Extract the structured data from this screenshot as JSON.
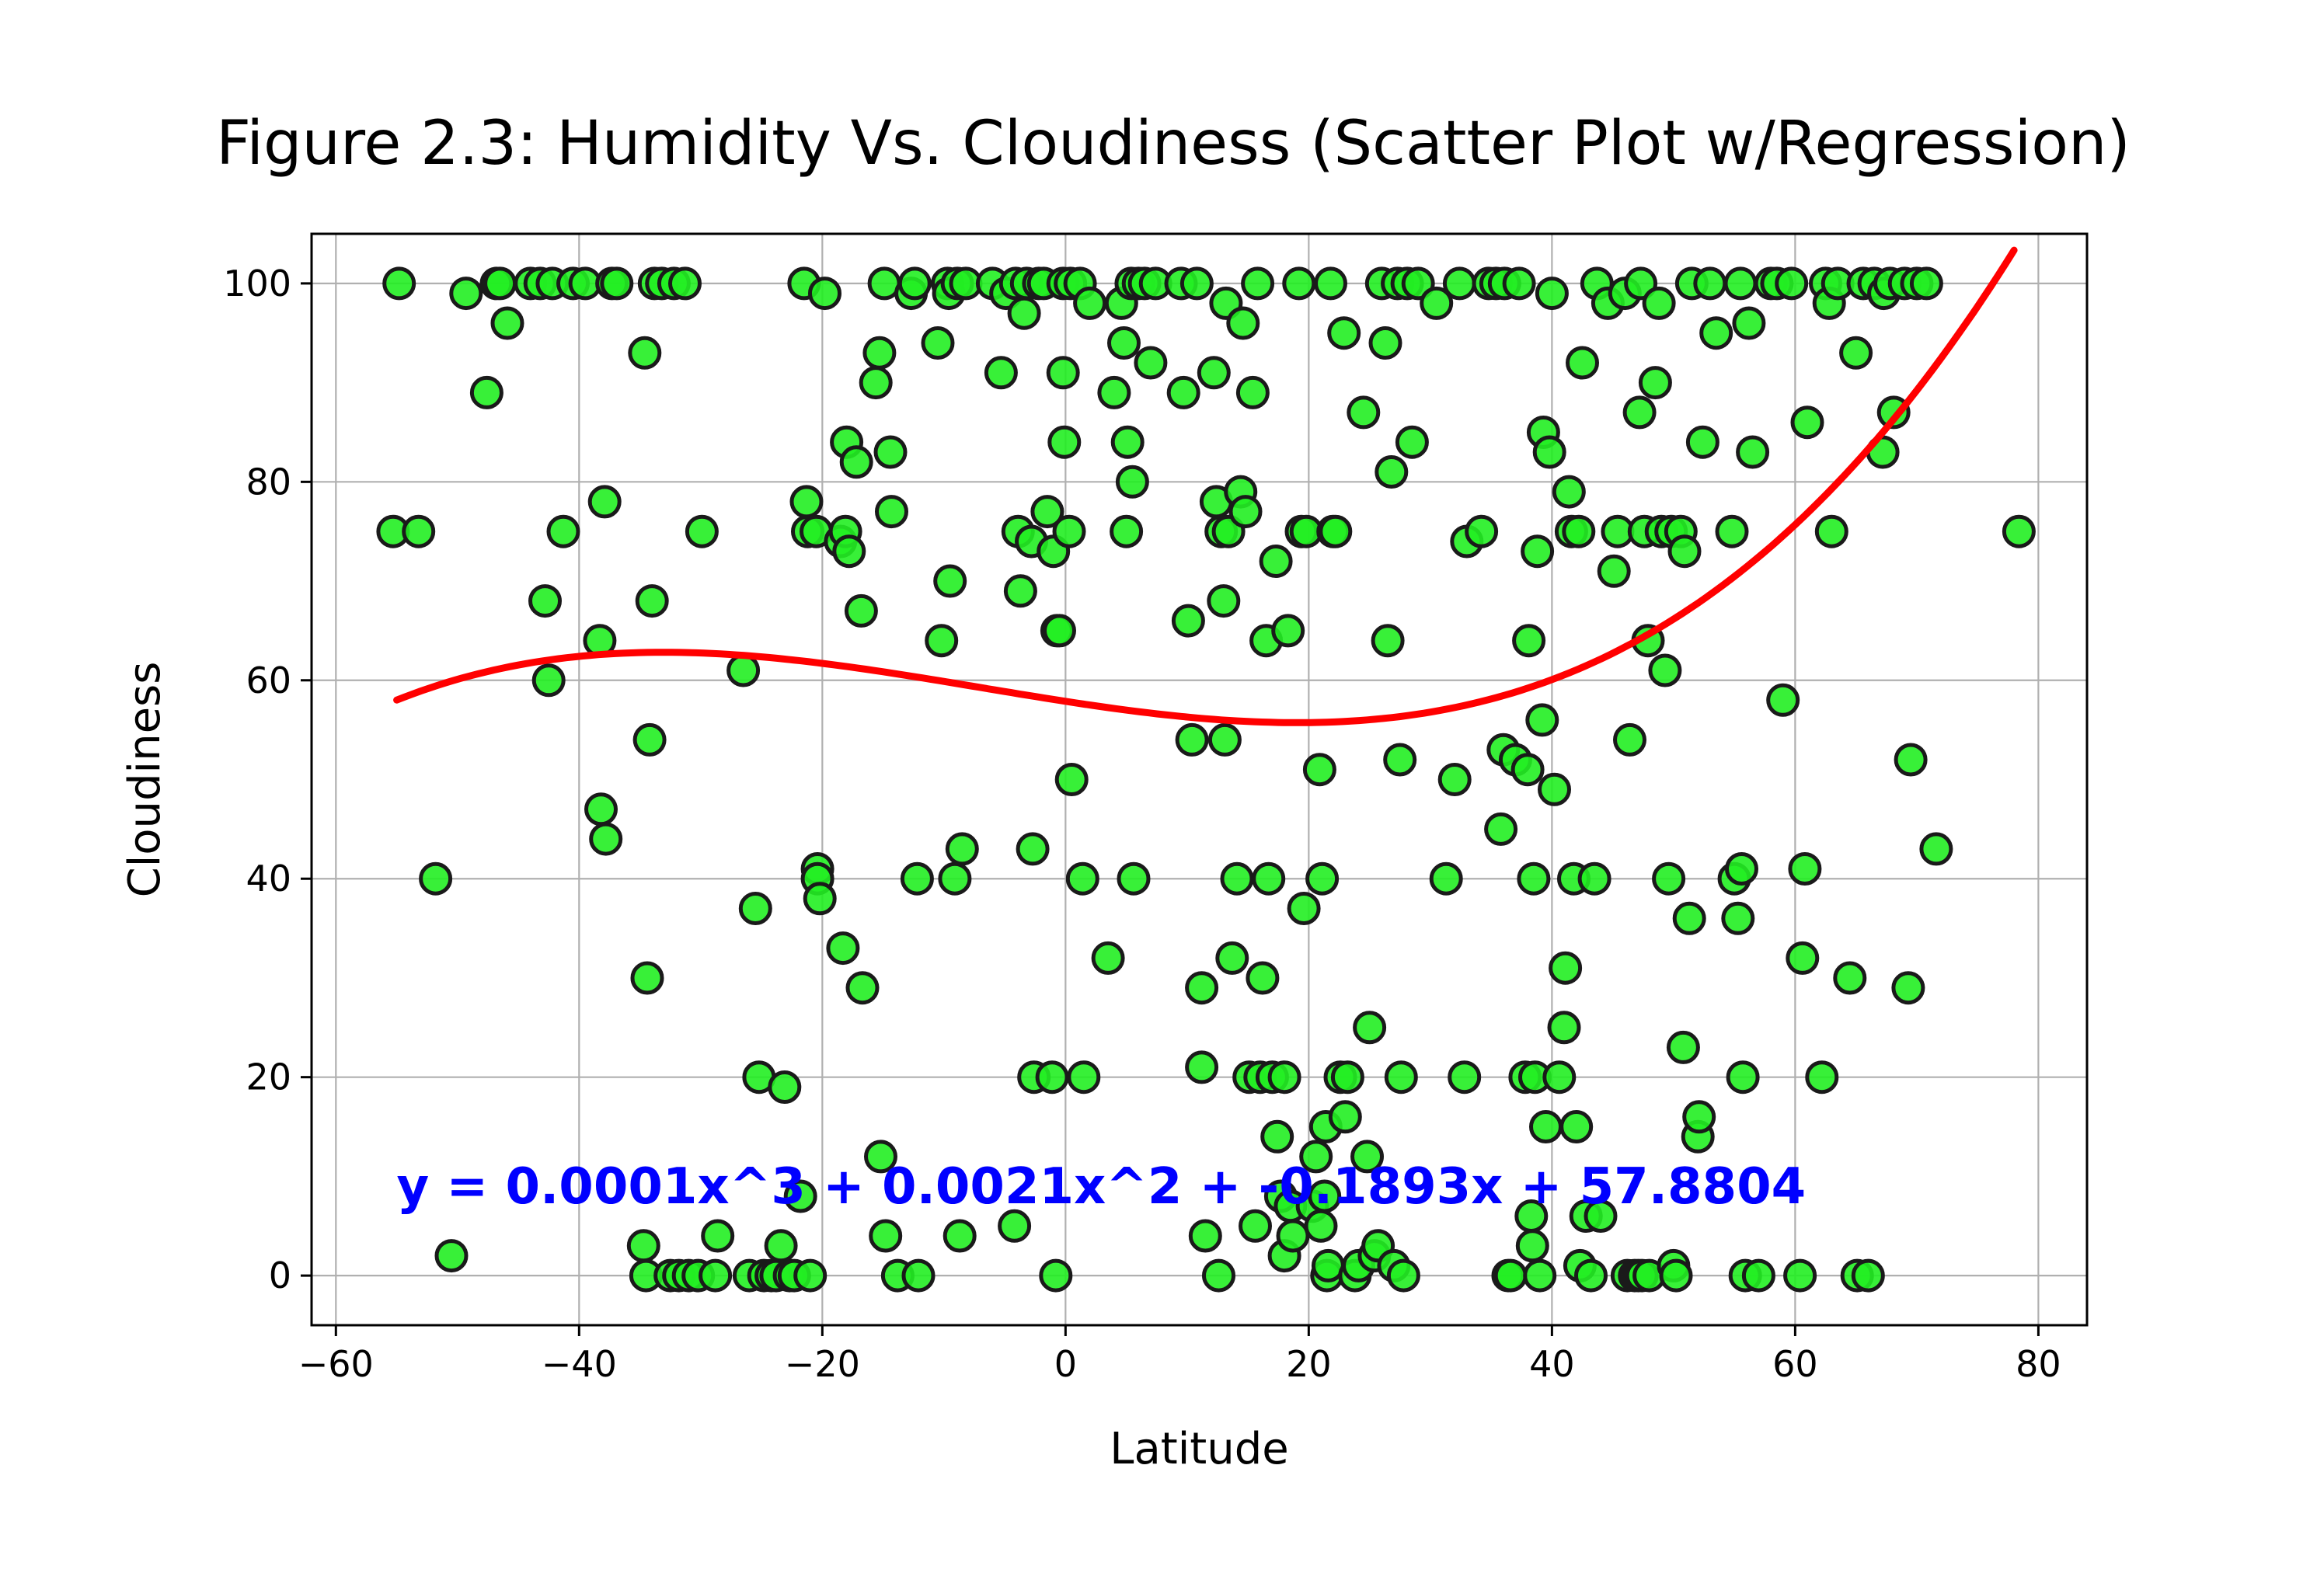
{
  "chart_data": {
    "type": "scatter",
    "title": "Figure 2.3: Humidity Vs. Cloudiness (Scatter Plot w/Regression)",
    "xlabel": "Latitude",
    "ylabel": "Cloudiness",
    "xlim": [
      -62,
      84
    ],
    "ylim": [
      -5,
      105
    ],
    "xticks": [
      -60,
      -40,
      -20,
      0,
      20,
      40,
      60,
      80
    ],
    "yticks": [
      0,
      20,
      40,
      60,
      80,
      100
    ],
    "xtick_labels": [
      "−60",
      "−40",
      "−20",
      "0",
      "20",
      "40",
      "60",
      "80"
    ],
    "ytick_labels": [
      "0",
      "20",
      "40",
      "60",
      "80",
      "100"
    ],
    "grid": true,
    "colors": {
      "marker_fill": "#22ee22",
      "marker_edge": "#1a1a1a",
      "regression": "#ff0000",
      "annotation": "#0000ff",
      "grid": "#b0b0b0"
    },
    "regression": {
      "coefficients": [
        0.0001,
        0.0021,
        -0.1893,
        57.8804
      ],
      "x_range": [
        -55,
        78
      ],
      "equation_label": "y = 0.0001x^3 + 0.0021x^2 + -0.1893x + 57.8804",
      "label_anchor": [
        -55,
        9
      ]
    },
    "points": [
      [
        -54.8,
        100
      ],
      [
        -55.3,
        75
      ],
      [
        -53.2,
        75
      ],
      [
        -51.8,
        40
      ],
      [
        -50.5,
        2
      ],
      [
        -49.3,
        99
      ],
      [
        -47.6,
        89
      ],
      [
        -46.8,
        100
      ],
      [
        -45.9,
        96
      ],
      [
        -46.5,
        100
      ],
      [
        -44,
        100
      ],
      [
        -43.2,
        100
      ],
      [
        -42.8,
        68
      ],
      [
        -42.5,
        60
      ],
      [
        -42.2,
        100
      ],
      [
        -41.3,
        75
      ],
      [
        -40.5,
        100
      ],
      [
        -39.5,
        100
      ],
      [
        -38.3,
        64
      ],
      [
        -38.2,
        47
      ],
      [
        -37.9,
        78
      ],
      [
        -37.8,
        44
      ],
      [
        -37.3,
        100
      ],
      [
        -36.9,
        100
      ],
      [
        -34.6,
        93
      ],
      [
        -34.7,
        3
      ],
      [
        -34.5,
        0
      ],
      [
        -34.4,
        30
      ],
      [
        -34.2,
        54
      ],
      [
        -34,
        68
      ],
      [
        -33.8,
        100
      ],
      [
        -33.2,
        100
      ],
      [
        -32.5,
        0
      ],
      [
        -32.2,
        100
      ],
      [
        -31.8,
        0
      ],
      [
        -31.3,
        100
      ],
      [
        -31,
        0
      ],
      [
        -30.2,
        0
      ],
      [
        -29.9,
        75
      ],
      [
        -28.8,
        0
      ],
      [
        -28.6,
        4
      ],
      [
        -26.5,
        61
      ],
      [
        -26,
        0
      ],
      [
        -25.5,
        37
      ],
      [
        -25.2,
        20
      ],
      [
        -24.8,
        0
      ],
      [
        -24.2,
        0
      ],
      [
        -23.8,
        0
      ],
      [
        -23.4,
        3
      ],
      [
        -23.1,
        19
      ],
      [
        -22.7,
        0
      ],
      [
        -22.3,
        0
      ],
      [
        -21.8,
        8
      ],
      [
        -21.5,
        100
      ],
      [
        -21.3,
        78
      ],
      [
        -21.2,
        75
      ],
      [
        -21,
        0
      ],
      [
        -20.5,
        75
      ],
      [
        -20.4,
        41
      ],
      [
        -20.4,
        40
      ],
      [
        -20.2,
        38
      ],
      [
        -19.8,
        99
      ],
      [
        -18.5,
        74
      ],
      [
        -18.3,
        33
      ],
      [
        -18.1,
        75
      ],
      [
        -18,
        84
      ],
      [
        -17.8,
        73
      ],
      [
        -17.2,
        82
      ],
      [
        -16.8,
        67
      ],
      [
        -16.7,
        29
      ],
      [
        -15.6,
        90
      ],
      [
        -15.3,
        93
      ],
      [
        -15.2,
        12
      ],
      [
        -14.9,
        100
      ],
      [
        -14.8,
        4
      ],
      [
        -14.4,
        83
      ],
      [
        -14.3,
        77
      ],
      [
        -13.8,
        0
      ],
      [
        -12.7,
        99
      ],
      [
        -12.4,
        100
      ],
      [
        -12.2,
        40
      ],
      [
        -12.1,
        0
      ],
      [
        -10.5,
        94
      ],
      [
        -10.2,
        64
      ],
      [
        -9.7,
        100
      ],
      [
        -9.6,
        99
      ],
      [
        -9.5,
        70
      ],
      [
        -9.1,
        40
      ],
      [
        -8.9,
        100
      ],
      [
        -8.7,
        4
      ],
      [
        -8.5,
        43
      ],
      [
        -8.2,
        100
      ],
      [
        -6,
        100
      ],
      [
        -5.3,
        91
      ],
      [
        -4.9,
        99
      ],
      [
        -4.2,
        5
      ],
      [
        -4.1,
        100
      ],
      [
        -3.9,
        75
      ],
      [
        -3.7,
        69
      ],
      [
        -3.4,
        97
      ],
      [
        -3.2,
        100
      ],
      [
        -2.8,
        74
      ],
      [
        -2.7,
        43
      ],
      [
        -2.6,
        20
      ],
      [
        -2.2,
        100
      ],
      [
        -1.8,
        100
      ],
      [
        -1.5,
        77
      ],
      [
        -1.1,
        20
      ],
      [
        -1,
        73
      ],
      [
        -0.8,
        0
      ],
      [
        -0.7,
        65
      ],
      [
        -0.5,
        65
      ],
      [
        -0.2,
        100
      ],
      [
        0.3,
        75
      ],
      [
        -0.2,
        91
      ],
      [
        -0.1,
        84
      ],
      [
        0.4,
        100
      ],
      [
        0.5,
        50
      ],
      [
        1.2,
        100
      ],
      [
        1.4,
        40
      ],
      [
        1.5,
        20
      ],
      [
        2,
        98
      ],
      [
        3.5,
        32
      ],
      [
        4,
        89
      ],
      [
        4.6,
        98
      ],
      [
        4.8,
        94
      ],
      [
        5,
        75
      ],
      [
        5.1,
        84
      ],
      [
        5.4,
        100
      ],
      [
        5.5,
        80
      ],
      [
        5.6,
        40
      ],
      [
        6,
        100
      ],
      [
        6.5,
        100
      ],
      [
        7,
        92
      ],
      [
        7.4,
        100
      ],
      [
        9.5,
        100
      ],
      [
        9.7,
        89
      ],
      [
        10.1,
        66
      ],
      [
        10.4,
        54
      ],
      [
        10.8,
        100
      ],
      [
        11.2,
        21
      ],
      [
        11.2,
        29
      ],
      [
        11.5,
        4
      ],
      [
        12.2,
        91
      ],
      [
        12.4,
        78
      ],
      [
        12.6,
        0
      ],
      [
        12.8,
        75
      ],
      [
        13,
        68
      ],
      [
        13.1,
        54
      ],
      [
        13.2,
        98
      ],
      [
        13.4,
        75
      ],
      [
        13.7,
        32
      ],
      [
        14.1,
        40
      ],
      [
        14.4,
        79
      ],
      [
        14.6,
        96
      ],
      [
        14.8,
        77
      ],
      [
        15.1,
        20
      ],
      [
        15.4,
        89
      ],
      [
        15.6,
        5
      ],
      [
        15.8,
        100
      ],
      [
        16,
        20
      ],
      [
        16.2,
        30
      ],
      [
        16.5,
        64
      ],
      [
        16.7,
        40
      ],
      [
        17,
        20
      ],
      [
        17.3,
        72
      ],
      [
        17.4,
        14
      ],
      [
        17.7,
        8
      ],
      [
        18,
        2
      ],
      [
        18,
        20
      ],
      [
        18.3,
        65
      ],
      [
        18.5,
        7
      ],
      [
        18.7,
        4
      ],
      [
        19.2,
        100
      ],
      [
        19.4,
        75
      ],
      [
        19.6,
        37
      ],
      [
        19.8,
        75
      ],
      [
        20.3,
        7
      ],
      [
        20.6,
        12
      ],
      [
        20.9,
        51
      ],
      [
        21,
        5
      ],
      [
        21.1,
        40
      ],
      [
        21.3,
        8
      ],
      [
        21.4,
        15
      ],
      [
        21.5,
        0
      ],
      [
        21.6,
        1
      ],
      [
        21.8,
        100
      ],
      [
        22,
        75
      ],
      [
        22.2,
        75
      ],
      [
        22.6,
        20
      ],
      [
        22.9,
        95
      ],
      [
        23,
        16
      ],
      [
        23.2,
        20
      ],
      [
        23.8,
        0
      ],
      [
        24.1,
        1
      ],
      [
        24.5,
        87
      ],
      [
        24.8,
        12
      ],
      [
        25,
        25
      ],
      [
        25.4,
        2
      ],
      [
        25.7,
        3
      ],
      [
        26,
        100
      ],
      [
        26.3,
        94
      ],
      [
        26.5,
        64
      ],
      [
        26.8,
        81
      ],
      [
        27,
        1
      ],
      [
        27.3,
        100
      ],
      [
        27.5,
        52
      ],
      [
        27.6,
        20
      ],
      [
        27.8,
        0
      ],
      [
        28.1,
        100
      ],
      [
        28.5,
        84
      ],
      [
        29,
        100
      ],
      [
        30.5,
        98
      ],
      [
        31.3,
        40
      ],
      [
        32,
        50
      ],
      [
        32.4,
        100
      ],
      [
        32.8,
        20
      ],
      [
        33,
        74
      ],
      [
        34.2,
        75
      ],
      [
        34.8,
        100
      ],
      [
        35.4,
        100
      ],
      [
        35.8,
        45
      ],
      [
        36,
        53
      ],
      [
        36.1,
        100
      ],
      [
        36.4,
        0
      ],
      [
        36.6,
        0
      ],
      [
        37,
        52
      ],
      [
        37.3,
        100
      ],
      [
        37.8,
        20
      ],
      [
        38,
        51
      ],
      [
        38.1,
        64
      ],
      [
        38.3,
        6
      ],
      [
        38.4,
        3
      ],
      [
        38.5,
        40
      ],
      [
        38.6,
        20
      ],
      [
        38.8,
        73
      ],
      [
        39,
        0
      ],
      [
        39.2,
        56
      ],
      [
        39.3,
        85
      ],
      [
        39.5,
        15
      ],
      [
        39.8,
        83
      ],
      [
        40,
        99
      ],
      [
        40.2,
        49
      ],
      [
        40.6,
        20
      ],
      [
        41,
        25
      ],
      [
        41.1,
        31
      ],
      [
        41.4,
        79
      ],
      [
        41.6,
        75
      ],
      [
        41.8,
        40
      ],
      [
        42,
        15
      ],
      [
        42.2,
        75
      ],
      [
        42.3,
        1
      ],
      [
        42.5,
        92
      ],
      [
        42.8,
        6
      ],
      [
        43.2,
        0
      ],
      [
        43.5,
        40
      ],
      [
        43.7,
        100
      ],
      [
        44,
        6
      ],
      [
        44.6,
        98
      ],
      [
        45.1,
        71
      ],
      [
        45.4,
        75
      ],
      [
        46,
        99
      ],
      [
        46.2,
        0
      ],
      [
        46.4,
        54
      ],
      [
        46.8,
        0
      ],
      [
        47.1,
        0
      ],
      [
        47.2,
        87
      ],
      [
        47.3,
        100
      ],
      [
        47.4,
        0
      ],
      [
        47.6,
        75
      ],
      [
        47.9,
        64
      ],
      [
        48,
        0
      ],
      [
        48.5,
        90
      ],
      [
        48.8,
        98
      ],
      [
        49,
        75
      ],
      [
        49.3,
        61
      ],
      [
        49.6,
        40
      ],
      [
        49.8,
        75
      ],
      [
        50,
        1
      ],
      [
        50.2,
        0
      ],
      [
        50.6,
        75
      ],
      [
        50.8,
        23
      ],
      [
        50.9,
        73
      ],
      [
        51.3,
        36
      ],
      [
        51.5,
        100
      ],
      [
        52,
        14
      ],
      [
        52.1,
        16
      ],
      [
        52.4,
        84
      ],
      [
        53,
        100
      ],
      [
        53.5,
        95
      ],
      [
        54.8,
        75
      ],
      [
        55,
        40
      ],
      [
        55.3,
        36
      ],
      [
        55.5,
        100
      ],
      [
        55.6,
        41
      ],
      [
        55.7,
        20
      ],
      [
        55.9,
        0
      ],
      [
        56.2,
        96
      ],
      [
        56.5,
        83
      ],
      [
        57,
        0
      ],
      [
        58,
        100
      ],
      [
        58.5,
        100
      ],
      [
        59,
        58
      ],
      [
        59.7,
        100
      ],
      [
        60.4,
        0
      ],
      [
        60.6,
        32
      ],
      [
        60.8,
        41
      ],
      [
        61,
        86
      ],
      [
        62.2,
        20
      ],
      [
        62.5,
        100
      ],
      [
        62.8,
        98
      ],
      [
        63,
        75
      ],
      [
        63.5,
        100
      ],
      [
        64.5,
        30
      ],
      [
        65,
        93
      ],
      [
        65.1,
        0
      ],
      [
        65.6,
        100
      ],
      [
        66,
        0
      ],
      [
        66.5,
        100
      ],
      [
        67.2,
        83
      ],
      [
        67.3,
        99
      ],
      [
        67.8,
        100
      ],
      [
        68.1,
        87
      ],
      [
        69,
        100
      ],
      [
        69.3,
        29
      ],
      [
        69.5,
        52
      ],
      [
        70,
        100
      ],
      [
        70.8,
        100
      ],
      [
        71.6,
        43
      ],
      [
        78.4,
        75
      ]
    ]
  }
}
